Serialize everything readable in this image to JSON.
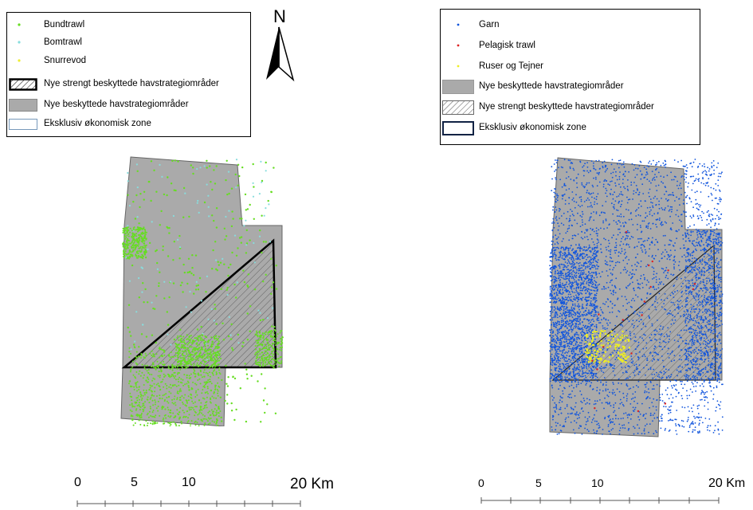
{
  "left_panel": {
    "legend": [
      {
        "label": "Bundtrawl",
        "symbol": "point",
        "color": "#66dd22"
      },
      {
        "label": "Bomtrawl",
        "symbol": "point",
        "color": "#88dddd"
      },
      {
        "label": "Snurrevod",
        "symbol": "point",
        "color": "#eeee33"
      },
      {
        "label": "Nye strengt beskyttede havstrategiområder",
        "symbol": "hatched-polygon",
        "color": "#000000"
      },
      {
        "label": "Nye beskyttede havstrategiområder",
        "symbol": "gray-polygon",
        "color": "#aaaaaa"
      },
      {
        "label": "Eksklusiv økonomisk zone",
        "symbol": "outline-polygon",
        "color": "#7799bb"
      }
    ],
    "north_arrow": "N",
    "scale_labels": [
      "0",
      "5",
      "10",
      "20 Km"
    ]
  },
  "right_panel": {
    "legend": [
      {
        "label": "Garn",
        "symbol": "point",
        "color": "#1155dd"
      },
      {
        "label": "Pelagisk trawl",
        "symbol": "point",
        "color": "#dd2222"
      },
      {
        "label": "Ruser og Tejner",
        "symbol": "point",
        "color": "#eeee22"
      },
      {
        "label": "Nye beskyttede havstrategiområder",
        "symbol": "gray-polygon",
        "color": "#aaaaaa"
      },
      {
        "label": "Nye strengt beskyttede havstrategiområder",
        "symbol": "hatched-polygon",
        "color": "#555555"
      },
      {
        "label": "Eksklusiv økonomisk zone",
        "symbol": "outline-polygon",
        "color": "#112244"
      }
    ],
    "scale_labels": [
      "0",
      "5",
      "10",
      "20 Km"
    ]
  },
  "colors": {
    "area_gray": "#aaaaaa",
    "bundtrawl": "#66dd22",
    "bomtrawl": "#88dddd",
    "garn": "#1155dd",
    "pelagisk": "#dd2222",
    "ruser": "#eeee22"
  }
}
